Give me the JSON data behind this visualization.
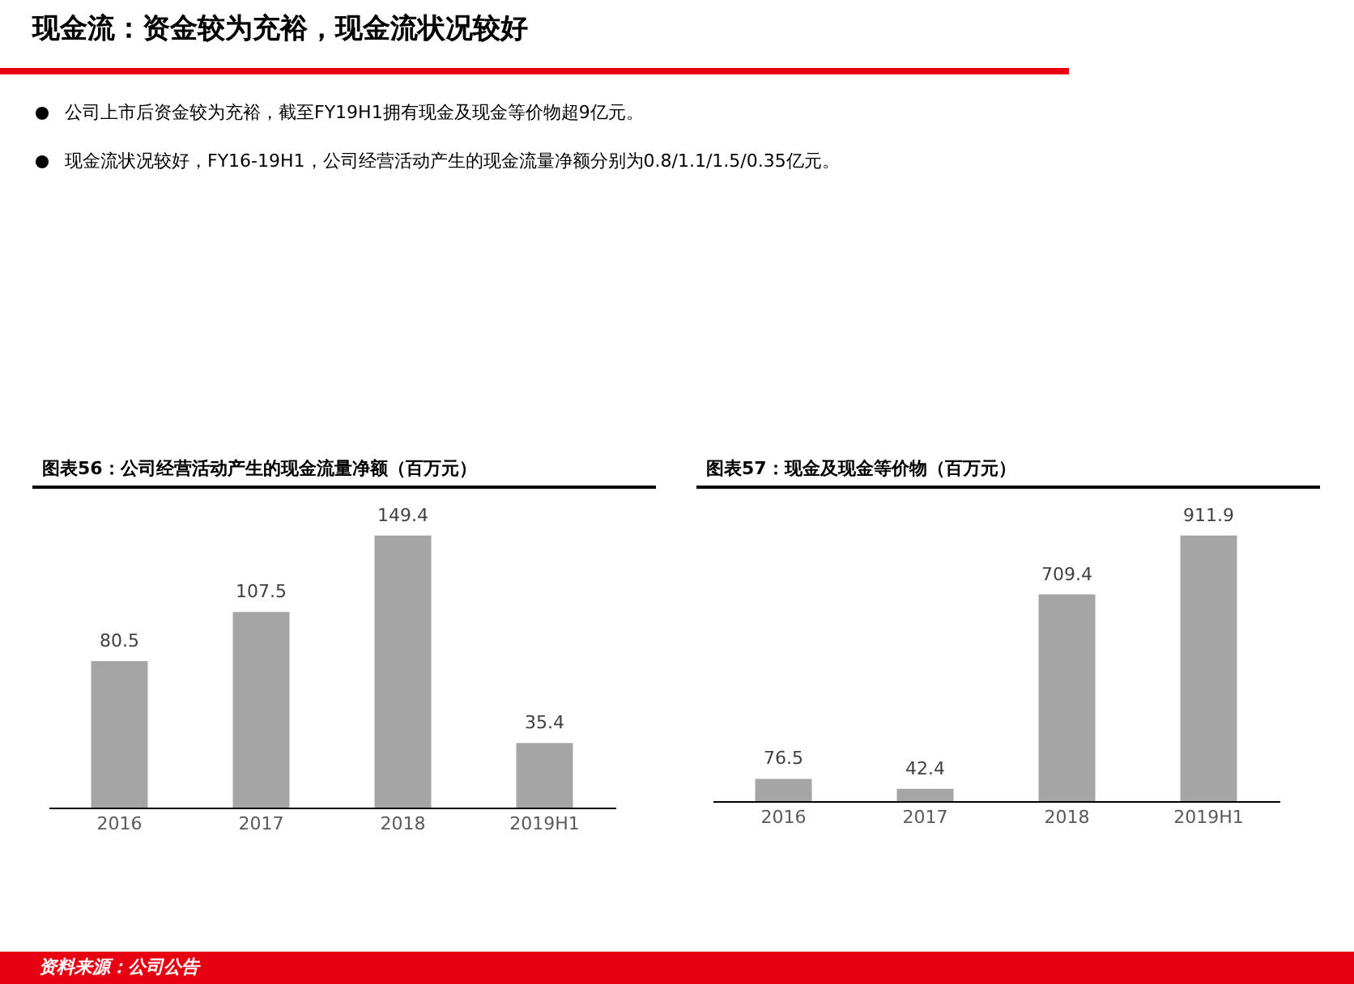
{
  "chart_data": [
    {
      "type": "bar",
      "title": "图表56：公司经营活动产生的现金流量净额（百万元）",
      "categories": [
        "2016",
        "2017",
        "2018",
        "2019H1"
      ],
      "values": [
        80.5,
        107.5,
        149.4,
        35.4
      ],
      "color": "#a5a5a5",
      "data_labels": true,
      "annotations": [
        "现金流：资金较为充裕，现金流状况较好",
        "公司上市后资金较为充裕，截至FY19H1拥有现金及现金等价物超9亿元。",
        "现金流状况较好，FY16-19H1，公司经营活动产生的现金流量净额分别为0.8/1.1/1.5/0.35亿元。"
      ]
    },
    {
      "type": "bar",
      "title": "图表57：现金及现金等价物（百万元）",
      "categories": [
        "2016",
        "2017",
        "2018",
        "2019H1"
      ],
      "values": [
        76.5,
        42.4,
        709.4,
        911.9
      ],
      "color": "#a5a5a5",
      "data_labels": true,
      "annotations": [
        "资料来源：公司公告"
      ]
    }
  ]
}
